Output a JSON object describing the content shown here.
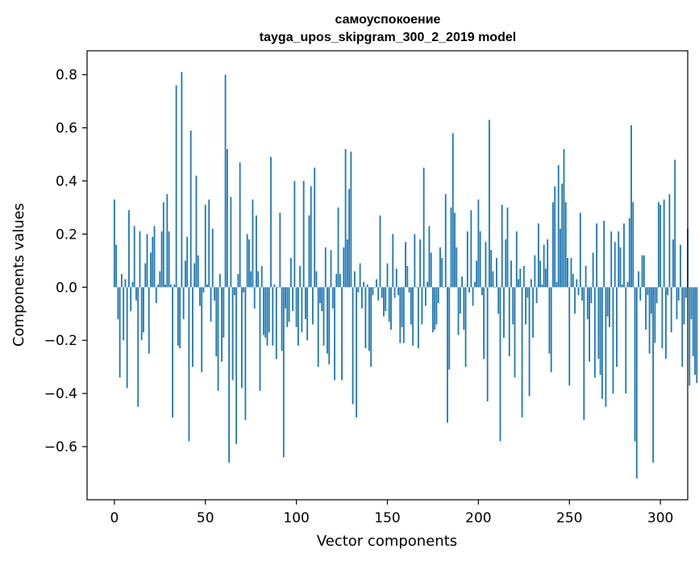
{
  "chart_data": {
    "type": "bar",
    "title": "самоуспокоение",
    "subtitle": "tayga_upos_skipgram_300_2_2019 model",
    "xlabel": "Vector components",
    "ylabel": "Components values",
    "xlim": [
      -15,
      315
    ],
    "ylim": [
      -0.8,
      0.89
    ],
    "xticks": [
      0,
      50,
      100,
      150,
      200,
      250,
      300
    ],
    "xtick_labels": [
      "0",
      "50",
      "100",
      "150",
      "200",
      "250",
      "300"
    ],
    "yticks": [
      -0.6,
      -0.4,
      -0.2,
      0.0,
      0.2,
      0.4,
      0.6,
      0.8
    ],
    "ytick_labels": [
      "−0.6",
      "−0.4",
      "−0.2",
      "0.0",
      "0.2",
      "0.4",
      "0.6",
      "0.8"
    ],
    "grid": false,
    "bar_color": "#1f77b4",
    "values": [
      0.33,
      0.16,
      -0.12,
      -0.34,
      0.05,
      -0.2,
      0.03,
      -0.38,
      0.29,
      -0.09,
      0.02,
      0.23,
      -0.05,
      -0.45,
      0.21,
      -0.2,
      -0.17,
      0.09,
      0.2,
      -0.25,
      0.13,
      0.19,
      0.23,
      -0.06,
      0.01,
      0.06,
      0.21,
      0.32,
      0.01,
      0.35,
      0.21,
      0.01,
      -0.49,
      0.01,
      0.76,
      -0.22,
      -0.23,
      0.81,
      -0.12,
      0.1,
      0.19,
      -0.58,
      0.59,
      -0.3,
      0.09,
      0.42,
      0.12,
      -0.07,
      -0.32,
      -0.02,
      0.31,
      0.01,
      0.33,
      -0.13,
      0.22,
      -0.05,
      -0.26,
      -0.39,
      0.05,
      -0.28,
      -0.19,
      0.8,
      0.52,
      -0.66,
      0.34,
      -0.35,
      -0.03,
      -0.59,
      0.05,
      0.47,
      -0.38,
      -0.02,
      -0.5,
      0.2,
      0.18,
      0.06,
      0.33,
      -0.08,
      0.27,
      0.06,
      -0.39,
      0.08,
      -0.18,
      -0.19,
      -0.22,
      -0.17,
      0.49,
      -0.22,
      0.01,
      -0.27,
      0.0,
      0.28,
      -0.24,
      -0.64,
      -0.08,
      -0.15,
      -0.13,
      0.11,
      -0.09,
      0.4,
      -0.15,
      -0.22,
      0.08,
      -0.17,
      0.4,
      -0.12,
      -0.2,
      0.27,
      0.38,
      -0.14,
      0.45,
      0.06,
      -0.3,
      -0.06,
      -0.09,
      -0.22,
      0.15,
      -0.25,
      -0.29,
      0.14,
      -0.08,
      -0.35,
      0.05,
      0.3,
      0.05,
      -0.35,
      0.15,
      0.52,
      0.18,
      0.37,
      0.51,
      -0.44,
      0.06,
      -0.49,
      -0.02,
      0.09,
      -0.08,
      0.02,
      -0.23,
      0.01,
      -0.24,
      -0.3,
      -0.03,
      0.0,
      0.03,
      -0.05,
      0.27,
      -0.04,
      -0.11,
      -0.09,
      0.09,
      -0.13,
      -0.16,
      0.2,
      -0.04,
      0.07,
      -0.03,
      -0.21,
      -0.15,
      -0.21,
      0.17,
      0.08,
      -0.02,
      -0.14,
      -0.22,
      0.2,
      0.0,
      -0.23,
      0.18,
      -0.14,
      0.45,
      -0.07,
      0.02,
      0.23,
      0.13,
      -0.17,
      -0.16,
      -0.14,
      -0.06,
      0.15,
      0.11,
      0.0,
      0.35,
      -0.51,
      -0.31,
      0.3,
      0.58,
      0.28,
      0.15,
      -0.18,
      -0.1,
      0.04,
      -0.16,
      -0.3,
      0.21,
      -0.02,
      0.29,
      -0.07,
      0.02,
      0.1,
      0.33,
      0.21,
      -0.03,
      -0.27,
      0.17,
      -0.43,
      0.63,
      0.14,
      0.06,
      0.0,
      0.11,
      -0.1,
      -0.58,
      0.31,
      -0.19,
      0.18,
      0.3,
      -0.26,
      0.1,
      -0.14,
      -0.34,
      0.21,
      0.03,
      0.07,
      -0.49,
      0.08,
      -0.14,
      -0.04,
      -0.41,
      0.03,
      -0.19,
      0.12,
      -0.06,
      0.24,
      0.1,
      0.01,
      0.16,
      0.07,
      0.18,
      -0.25,
      -0.32,
      0.32,
      0.38,
      0.02,
      0.46,
      0.22,
      0.39,
      0.52,
      0.32,
      0.11,
      -0.37,
      0.11,
      0.05,
      -0.1,
      0.03,
      -0.03,
      0.28,
      -0.05,
      -0.5,
      0.08,
      -0.12,
      -0.28,
      -0.06,
      0.13,
      -0.34,
      0.24,
      -0.27,
      -0.33,
      -0.42,
      0.25,
      -0.45,
      -0.11,
      -0.15,
      0.21,
      -0.4,
      0.17,
      -0.3,
      0.21,
      0.15,
      0.01,
      0.24,
      -0.4,
      0.02,
      0.26,
      0.61,
      0.32,
      -0.58,
      -0.72,
      0.06,
      -0.05,
      0.12,
      0.12,
      -0.16,
      -0.03,
      -0.25,
      -0.1,
      -0.66,
      -0.21,
      -0.06,
      0.32,
      0.31,
      -0.23,
      0.33,
      -0.27,
      -0.03,
      0.35,
      -0.17,
      0.18,
      0.48,
      -0.12,
      -0.05,
      0.16,
      -0.3,
      -0.14,
      -0.04,
      0.22,
      -0.37,
      -0.12,
      -0.26,
      -0.33,
      -0.36
    ]
  }
}
